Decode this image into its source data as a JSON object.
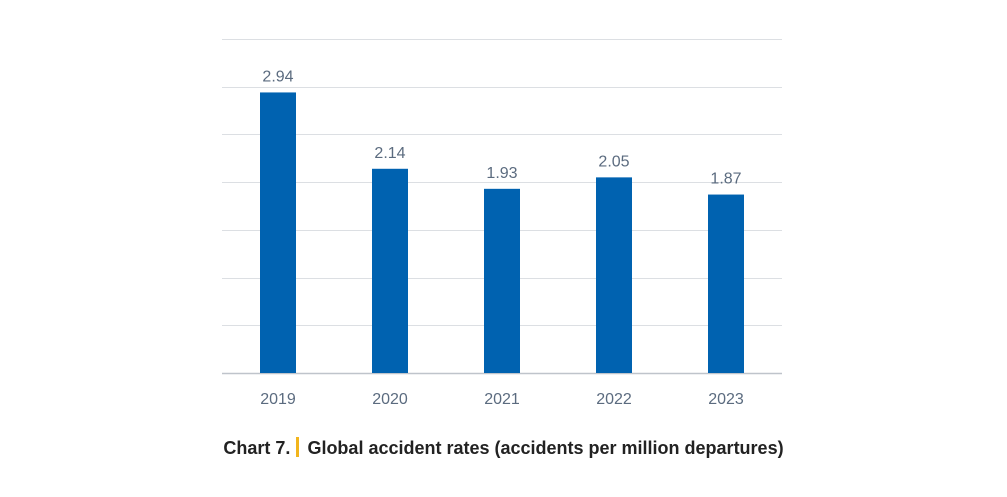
{
  "caption": {
    "number": "Chart 7.",
    "title": "Global accident rates (accidents per million departures)"
  },
  "colors": {
    "bar": "#0062b0",
    "separator": "#f2b51d"
  },
  "chart_data": {
    "type": "bar",
    "categories": [
      "2019",
      "2020",
      "2021",
      "2022",
      "2023"
    ],
    "values": [
      2.94,
      2.14,
      1.93,
      2.05,
      1.87
    ],
    "value_labels": [
      "2.94",
      "2.14",
      "1.93",
      "2.05",
      "1.87"
    ],
    "title": "Global accident rates (accidents per million departures)",
    "xlabel": "",
    "ylabel": "",
    "ylim": [
      0,
      3.5
    ],
    "grid": true,
    "legend": "none"
  }
}
